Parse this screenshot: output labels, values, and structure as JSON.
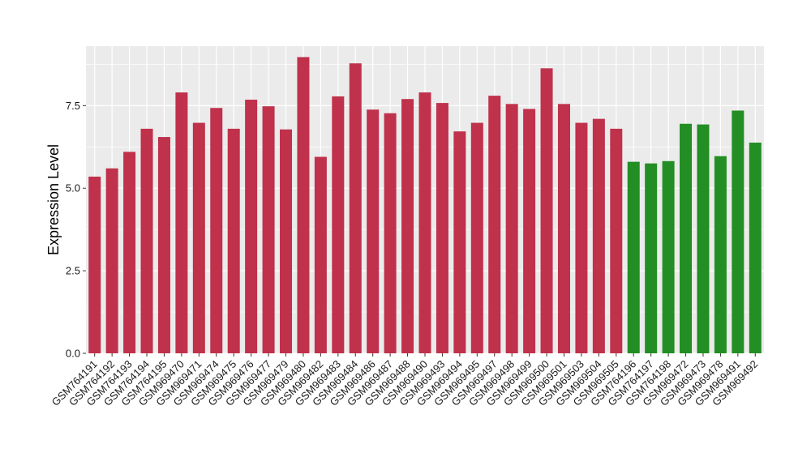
{
  "chart_data": {
    "type": "bar",
    "title": "",
    "xlabel": "",
    "ylabel": "Expression Level",
    "ylim": [
      0,
      9.3
    ],
    "yticks": [
      0.0,
      2.5,
      5.0,
      7.5
    ],
    "ytick_labels": [
      "0.0",
      "2.5",
      "5.0",
      "7.5"
    ],
    "grid": true,
    "legend": "none",
    "colors": {
      "group1": "#C0314B",
      "group2": "#238E23",
      "panel": "#EBEBEB",
      "grid": "#FFFFFF"
    },
    "categories": [
      "GSM764191",
      "GSM764192",
      "GSM764193",
      "GSM764194",
      "GSM764195",
      "GSM969470",
      "GSM969471",
      "GSM969474",
      "GSM969475",
      "GSM969476",
      "GSM969477",
      "GSM969479",
      "GSM969480",
      "GSM969482",
      "GSM969483",
      "GSM969484",
      "GSM969486",
      "GSM969487",
      "GSM969488",
      "GSM969490",
      "GSM969493",
      "GSM969494",
      "GSM969495",
      "GSM969497",
      "GSM969498",
      "GSM969499",
      "GSM969500",
      "GSM969501",
      "GSM969503",
      "GSM969504",
      "GSM969505",
      "GSM764196",
      "GSM764197",
      "GSM764198",
      "GSM969472",
      "GSM969473",
      "GSM969478",
      "GSM969491",
      "GSM969492"
    ],
    "values": [
      5.35,
      5.6,
      6.1,
      6.8,
      6.55,
      7.9,
      6.98,
      7.43,
      6.8,
      7.68,
      7.48,
      6.78,
      8.97,
      5.95,
      7.78,
      8.78,
      7.38,
      7.27,
      7.7,
      7.9,
      7.58,
      6.72,
      6.98,
      7.8,
      7.55,
      7.4,
      8.63,
      7.55,
      6.98,
      7.1,
      6.8,
      5.8,
      5.75,
      5.82,
      6.95,
      6.93,
      5.97,
      7.35,
      6.38
    ],
    "groups": [
      1,
      1,
      1,
      1,
      1,
      1,
      1,
      1,
      1,
      1,
      1,
      1,
      1,
      1,
      1,
      1,
      1,
      1,
      1,
      1,
      1,
      1,
      1,
      1,
      1,
      1,
      1,
      1,
      1,
      1,
      1,
      2,
      2,
      2,
      2,
      2,
      2,
      2,
      2
    ]
  }
}
